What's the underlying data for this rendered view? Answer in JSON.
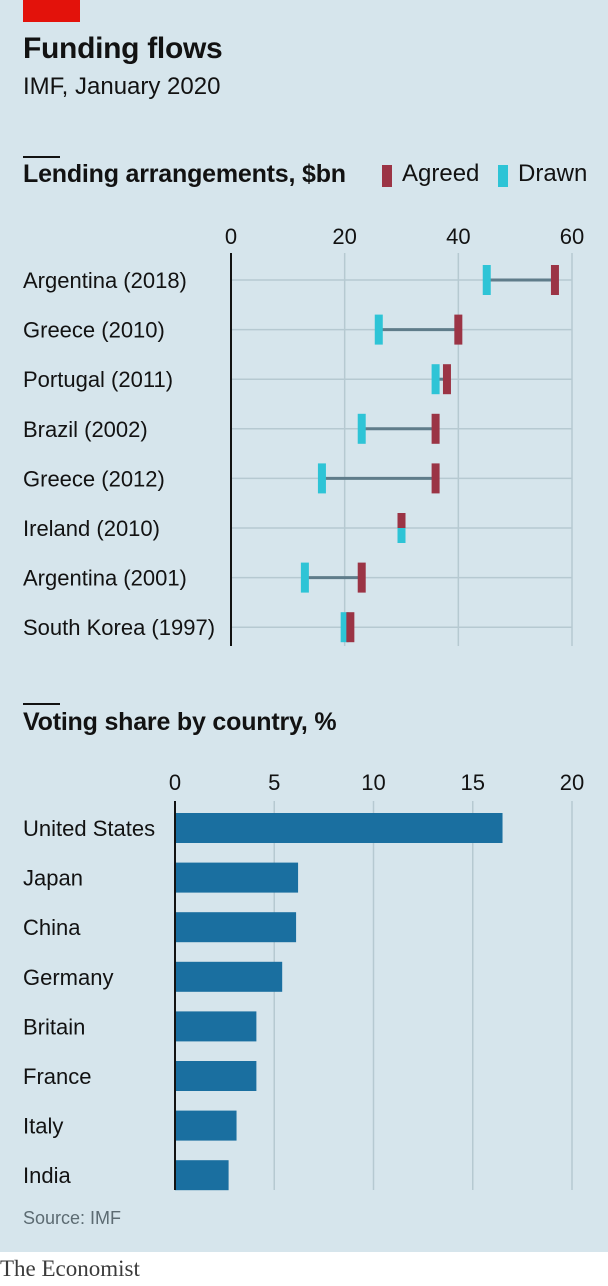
{
  "header": {
    "title": "Funding flows",
    "subtitle": "IMF, January 2020"
  },
  "colors": {
    "agreed": "#9b3445",
    "drawn": "#2ec4d6",
    "connector": "#5f7c8a",
    "bar": "#1a6fa0",
    "brand_red": "#e3120b",
    "gridline": "#b6c9d1",
    "background": "#d6e5ec"
  },
  "legend": {
    "agreed_label": "Agreed",
    "drawn_label": "Drawn"
  },
  "footer": {
    "source": "Source: IMF",
    "brand": "The Economist"
  },
  "chart_data": [
    {
      "type": "dumbbell",
      "title": "Lending arrangements, $bn",
      "ticks": [
        0,
        20,
        40,
        60
      ],
      "xlim": [
        0,
        60
      ],
      "grid": true,
      "legend_position": "top-right",
      "categories": [
        "Argentina (2018)",
        "Greece (2010)",
        "Portugal (2011)",
        "Brazil (2002)",
        "Greece (2012)",
        "Ireland (2010)",
        "Argentina (2001)",
        "South Korea (1997)"
      ],
      "series": [
        {
          "name": "Agreed",
          "values": [
            57,
            40,
            38,
            36,
            36,
            30,
            23,
            21
          ]
        },
        {
          "name": "Drawn",
          "values": [
            45,
            26,
            36,
            23,
            16,
            30,
            13,
            20
          ]
        }
      ]
    },
    {
      "type": "bar",
      "orientation": "horizontal",
      "title": "Voting share by country, %",
      "ticks": [
        0,
        5,
        10,
        15,
        20
      ],
      "xlim": [
        0,
        20
      ],
      "grid": true,
      "categories": [
        "United States",
        "Japan",
        "China",
        "Germany",
        "Britain",
        "France",
        "Italy",
        "India"
      ],
      "values": [
        16.5,
        6.2,
        6.1,
        5.4,
        4.1,
        4.1,
        3.1,
        2.7
      ]
    }
  ]
}
